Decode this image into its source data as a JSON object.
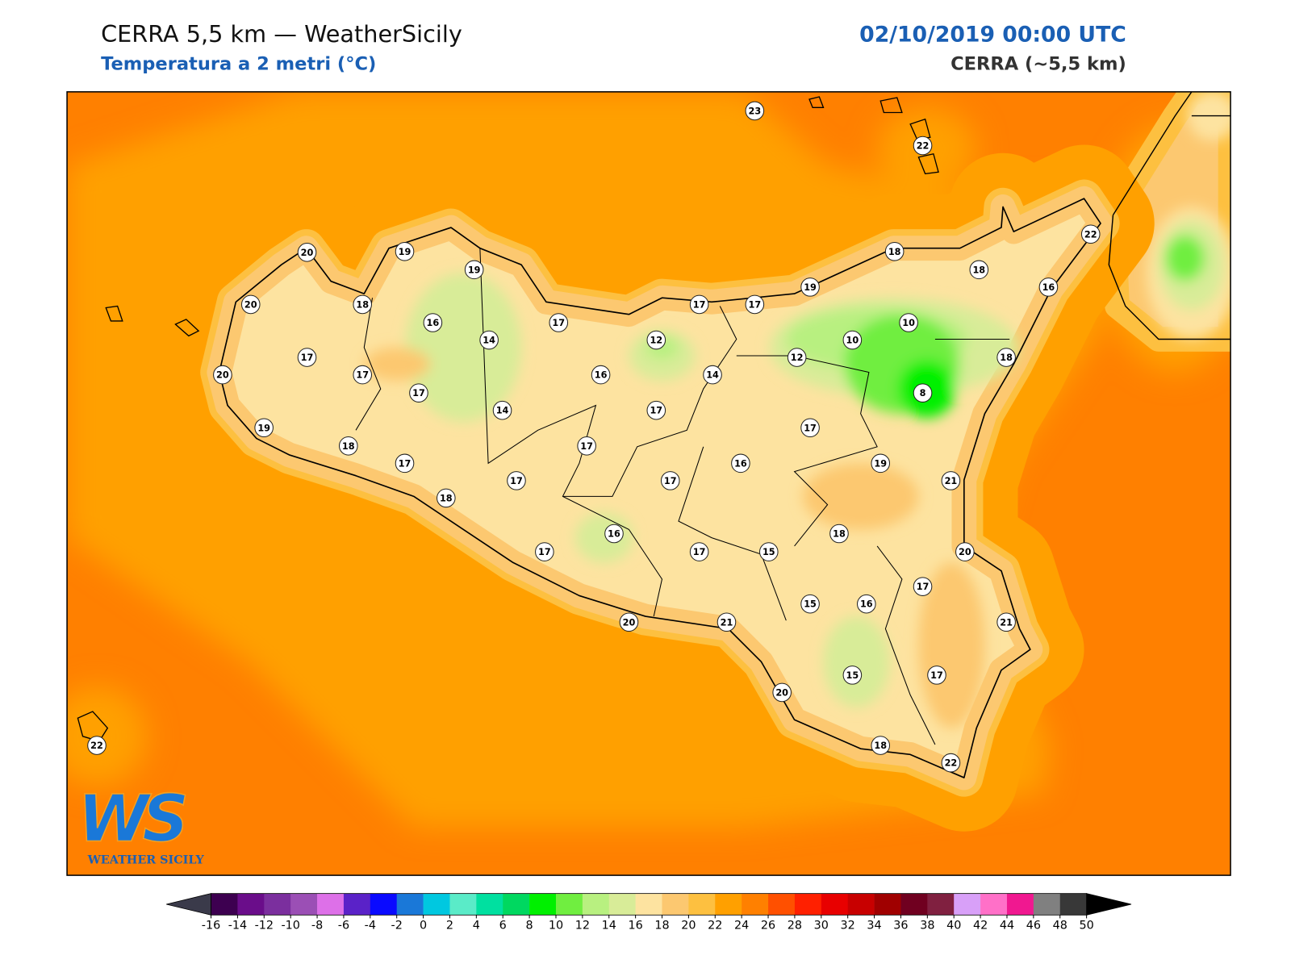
{
  "header": {
    "title": "CERRA 5,5 km — WeatherSicily",
    "subtitle": "Temperatura a 2 metri (°C)",
    "date": "02/10/2019 00:00 UTC",
    "model": "CERRA (~5,5 km)"
  },
  "map": {
    "station_values": [
      23,
      22,
      20,
      19,
      19,
      18,
      18,
      22,
      16,
      20,
      18,
      17,
      17,
      17,
      19,
      16,
      14,
      12,
      10,
      10,
      17,
      17,
      20,
      12,
      18,
      16,
      14,
      17,
      8,
      14,
      17,
      19,
      17,
      18,
      17,
      17,
      16,
      19,
      17,
      17,
      21,
      18,
      18,
      16,
      17,
      17,
      15,
      20,
      17,
      15,
      16,
      20,
      21,
      21,
      15,
      17,
      20,
      22,
      18,
      22
    ]
  },
  "logo": {
    "mark": "WS",
    "text": "WEATHER SICILY"
  },
  "colorbar": {
    "ticks": [
      -16,
      -14,
      -12,
      -10,
      -8,
      -6,
      -4,
      -2,
      0,
      2,
      4,
      6,
      8,
      10,
      12,
      14,
      16,
      18,
      20,
      22,
      24,
      26,
      28,
      30,
      32,
      34,
      36,
      38,
      40,
      42,
      44,
      46,
      48,
      50
    ],
    "colors": [
      "#3d0050",
      "#6a0d8a",
      "#7b2f9e",
      "#9b4fb5",
      "#dd70e8",
      "#5a22c8",
      "#0a0aff",
      "#1a78d8",
      "#00c8e0",
      "#5aebc8",
      "#00e0a0",
      "#00d860",
      "#00f000",
      "#70ee40",
      "#b8f080",
      "#d8ec98",
      "#fde3a0",
      "#fcc870",
      "#fdc040",
      "#ffa000",
      "#ff8000",
      "#ff5000",
      "#ff2000",
      "#e80000",
      "#c80000",
      "#a00000",
      "#700020",
      "#802040",
      "#d8a0f8",
      "#ff70c8",
      "#f01890",
      "#808080",
      "#383838"
    ],
    "under_color": "#3a3a4a",
    "over_color": "#000000"
  }
}
